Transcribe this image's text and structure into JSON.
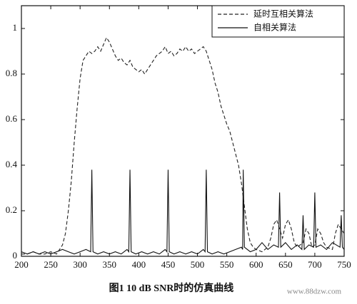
{
  "chart_data": {
    "type": "line",
    "caption": "图1   10 dB SNR时的仿真曲线",
    "watermark": "www.88dzw.com",
    "xlim": [
      200,
      750
    ],
    "xticks": [
      200,
      250,
      300,
      350,
      400,
      450,
      500,
      550,
      600,
      650,
      700,
      750
    ],
    "ylim": [
      0,
      1.1
    ],
    "yticks": [
      0,
      0.2,
      0.4,
      0.6,
      0.8,
      1
    ],
    "legend": "upper right",
    "series": [
      {
        "name": "延时互相关算法",
        "color": "#222222",
        "dash": "5,3",
        "x": [
          200,
          210,
          220,
          230,
          240,
          250,
          260,
          265,
          270,
          275,
          280,
          285,
          290,
          295,
          300,
          305,
          310,
          315,
          320,
          325,
          330,
          335,
          340,
          345,
          350,
          355,
          360,
          365,
          370,
          375,
          380,
          385,
          390,
          395,
          400,
          405,
          410,
          415,
          420,
          425,
          430,
          435,
          440,
          445,
          450,
          455,
          460,
          465,
          470,
          475,
          480,
          485,
          490,
          495,
          500,
          505,
          510,
          515,
          520,
          525,
          530,
          535,
          540,
          545,
          550,
          555,
          560,
          565,
          570,
          575,
          580,
          585,
          590,
          595,
          600,
          610,
          620,
          625,
          630,
          635,
          640,
          645,
          650,
          655,
          660,
          665,
          670,
          680,
          685,
          690,
          695,
          700,
          705,
          710,
          715,
          720,
          730,
          735,
          740,
          745,
          750
        ],
        "values": [
          0.01,
          0.01,
          0.02,
          0.01,
          0.01,
          0.02,
          0.01,
          0.03,
          0.05,
          0.1,
          0.2,
          0.33,
          0.5,
          0.65,
          0.78,
          0.86,
          0.88,
          0.9,
          0.89,
          0.9,
          0.92,
          0.9,
          0.93,
          0.96,
          0.94,
          0.91,
          0.88,
          0.86,
          0.87,
          0.85,
          0.84,
          0.86,
          0.83,
          0.82,
          0.81,
          0.82,
          0.8,
          0.82,
          0.84,
          0.86,
          0.88,
          0.89,
          0.9,
          0.92,
          0.89,
          0.9,
          0.88,
          0.89,
          0.91,
          0.9,
          0.92,
          0.9,
          0.91,
          0.89,
          0.9,
          0.91,
          0.92,
          0.9,
          0.86,
          0.82,
          0.76,
          0.72,
          0.66,
          0.62,
          0.58,
          0.55,
          0.5,
          0.45,
          0.4,
          0.32,
          0.22,
          0.12,
          0.06,
          0.04,
          0.03,
          0.02,
          0.04,
          0.08,
          0.14,
          0.16,
          0.12,
          0.08,
          0.14,
          0.16,
          0.12,
          0.06,
          0.04,
          0.06,
          0.12,
          0.1,
          0.04,
          0.05,
          0.12,
          0.1,
          0.06,
          0.04,
          0.03,
          0.1,
          0.14,
          0.12,
          0.1
        ]
      },
      {
        "name": "自相关算法",
        "color": "#111111",
        "dash": "none",
        "x": [
          200,
          210,
          220,
          230,
          240,
          250,
          260,
          270,
          280,
          290,
          300,
          310,
          318,
          320,
          322,
          330,
          340,
          350,
          360,
          370,
          380,
          383,
          385,
          387,
          395,
          405,
          415,
          425,
          435,
          445,
          448,
          450,
          452,
          460,
          470,
          480,
          490,
          500,
          510,
          513,
          515,
          517,
          525,
          535,
          545,
          555,
          565,
          575,
          577,
          578,
          580,
          590,
          600,
          610,
          620,
          630,
          638,
          640,
          642,
          650,
          660,
          670,
          678,
          680,
          682,
          690,
          698,
          700,
          702,
          710,
          720,
          730,
          743,
          745,
          747,
          750
        ],
        "values": [
          0.02,
          0.01,
          0.02,
          0.01,
          0.02,
          0.01,
          0.02,
          0.03,
          0.02,
          0.01,
          0.02,
          0.03,
          0.02,
          0.38,
          0.02,
          0.01,
          0.02,
          0.01,
          0.02,
          0.01,
          0.03,
          0.02,
          0.38,
          0.02,
          0.01,
          0.02,
          0.01,
          0.02,
          0.01,
          0.03,
          0.02,
          0.38,
          0.02,
          0.01,
          0.02,
          0.01,
          0.02,
          0.01,
          0.03,
          0.02,
          0.38,
          0.02,
          0.01,
          0.02,
          0.01,
          0.02,
          0.03,
          0.04,
          0.03,
          0.38,
          0.04,
          0.02,
          0.03,
          0.06,
          0.03,
          0.05,
          0.04,
          0.28,
          0.04,
          0.06,
          0.03,
          0.05,
          0.03,
          0.18,
          0.03,
          0.05,
          0.04,
          0.28,
          0.04,
          0.05,
          0.03,
          0.06,
          0.04,
          0.18,
          0.04,
          0.03
        ]
      }
    ]
  }
}
